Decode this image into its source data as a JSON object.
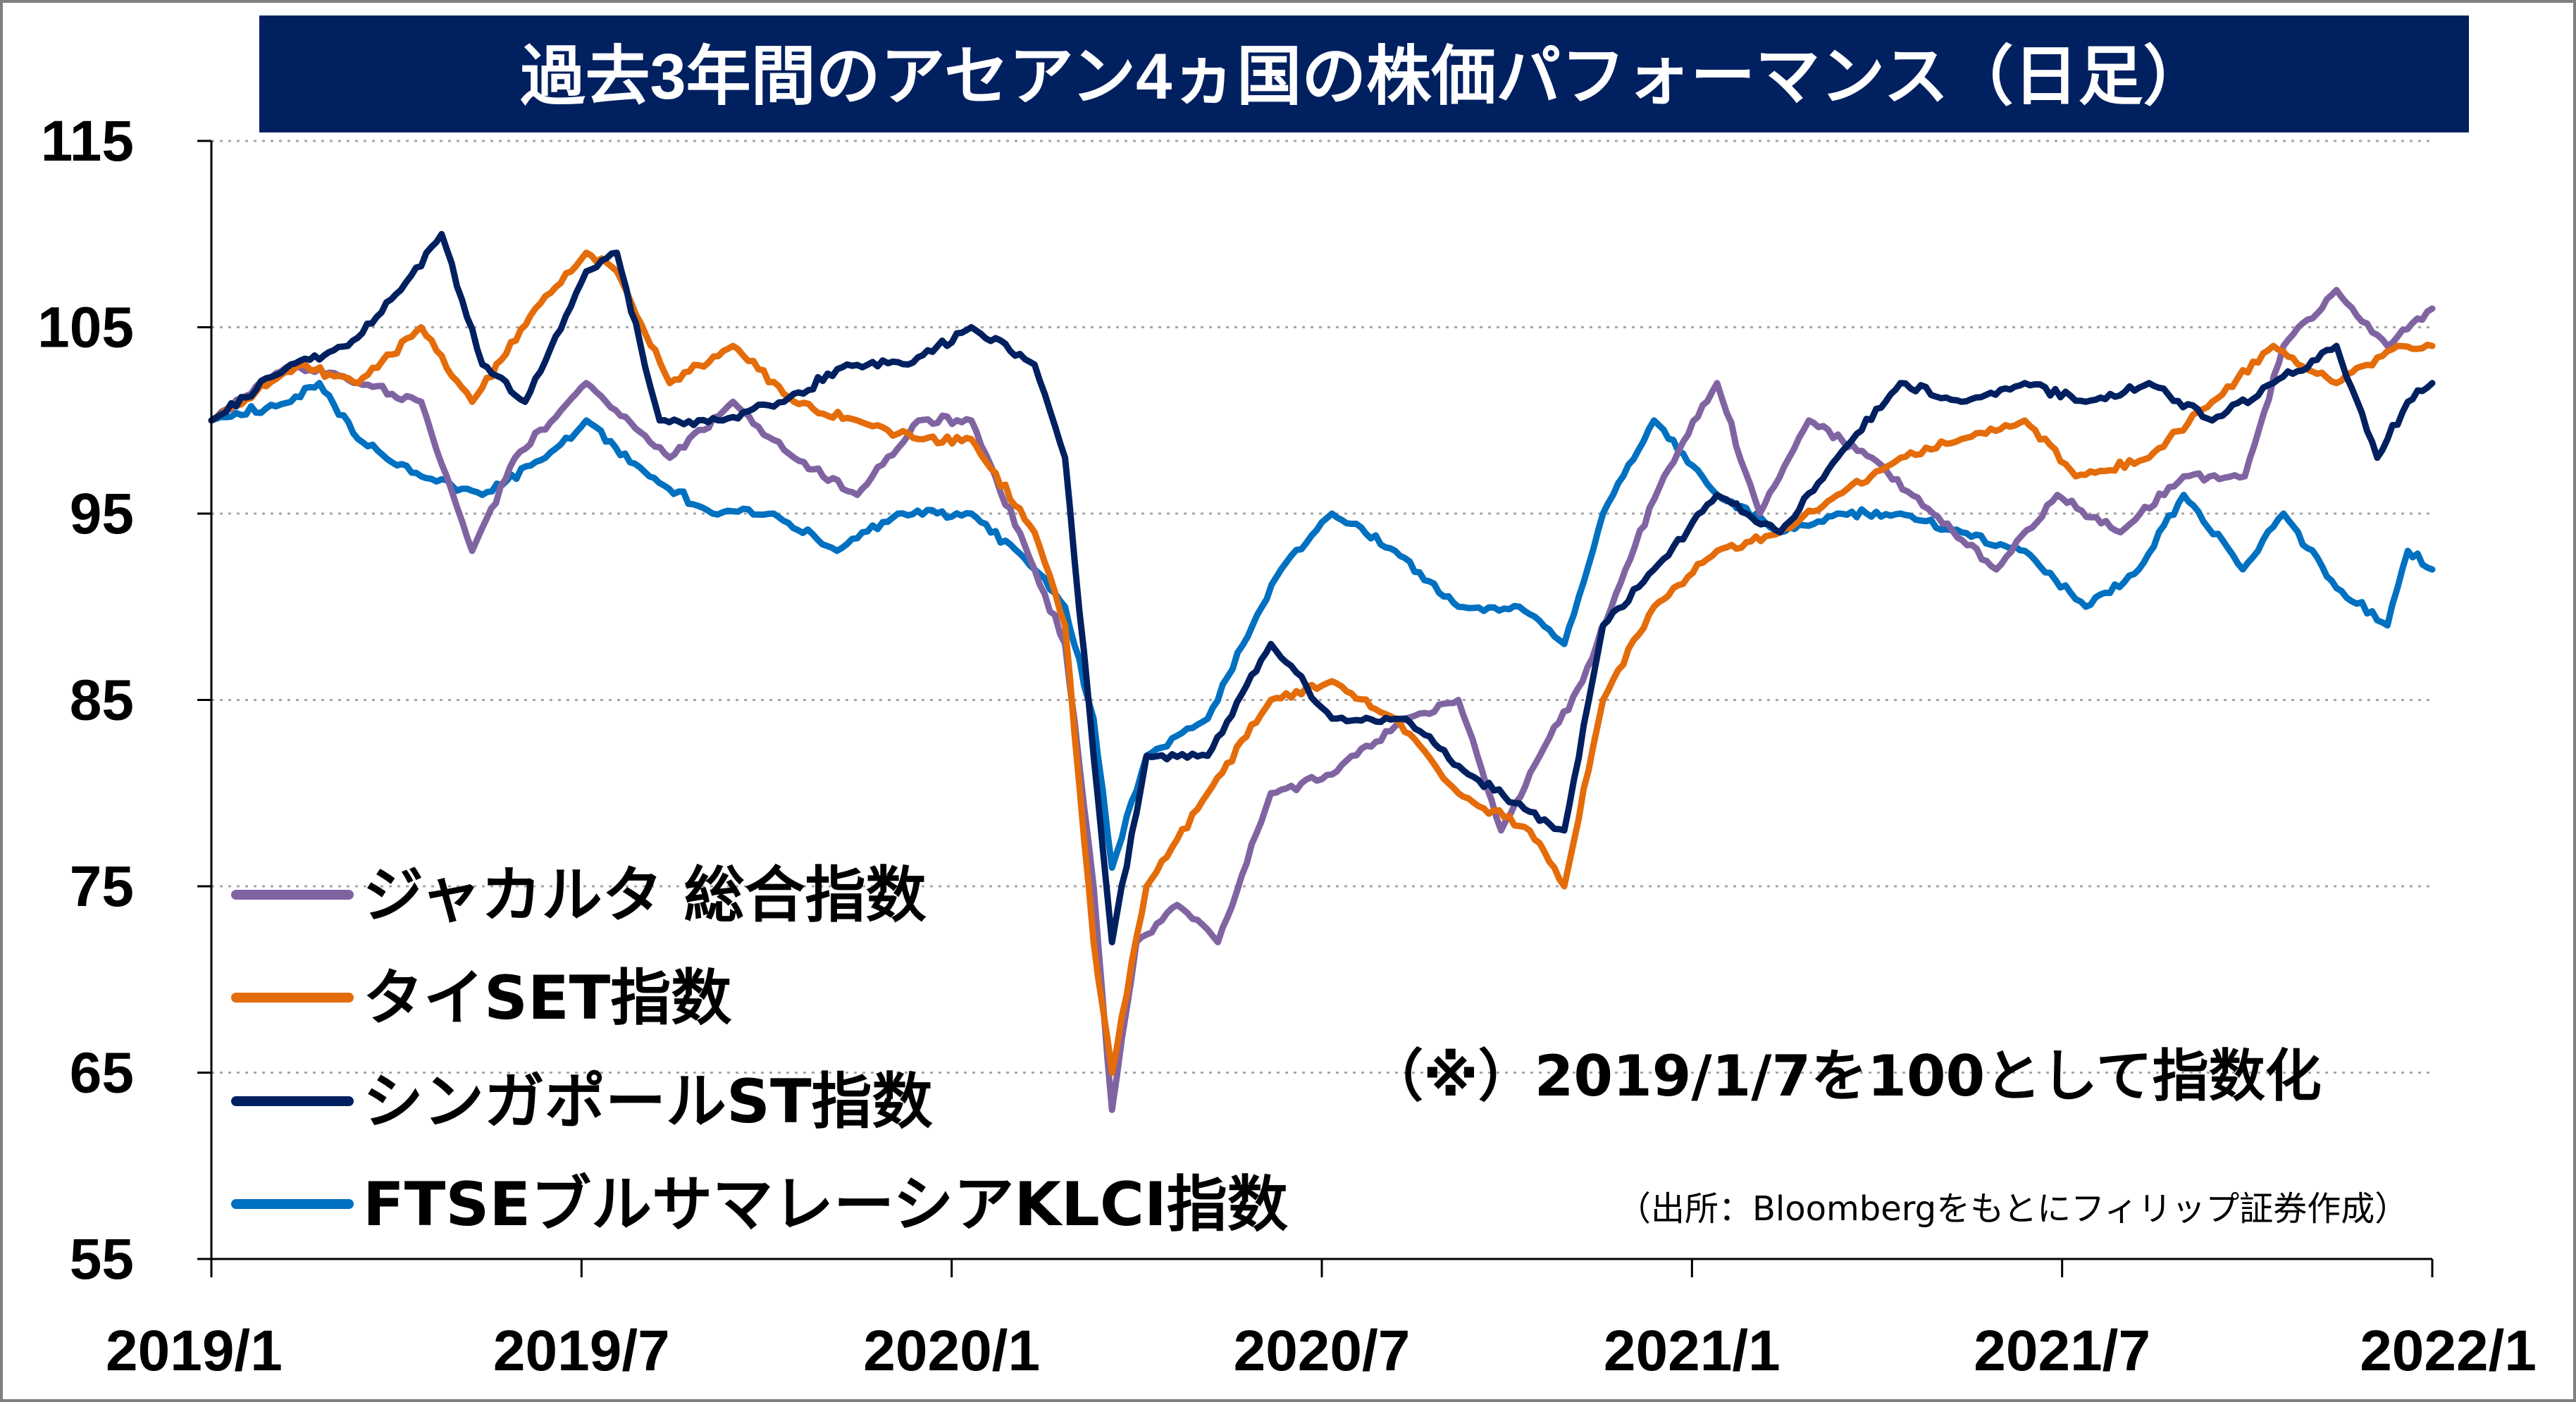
{
  "chart_data": {
    "type": "line",
    "title": "過去3年間のアセアン4ヵ国の株価パフォーマンス（日足）",
    "xlabel": "",
    "ylabel": "",
    "x_ticks": [
      "2019/1",
      "2019/7",
      "2020/1",
      "2020/7",
      "2021/1",
      "2021/7",
      "2022/1"
    ],
    "y_ticks": [
      115,
      105,
      95,
      85,
      75,
      65,
      55
    ],
    "ylim": [
      55,
      115
    ],
    "xlim": [
      "2019-01-07",
      "2022-01-01"
    ],
    "grid": "horizontal-dotted",
    "legend_position": "bottom-left",
    "annotation": "（※）2019/1/7を100として指数化",
    "source": "（出所：Bloombergをもとにフィリップ証券作成）",
    "series": [
      {
        "name": "ジャカルタ 総合指数",
        "color": "#8064A2",
        "points": [
          [
            "2019-01-07",
            100
          ],
          [
            "2019-02-15",
            103
          ],
          [
            "2019-03-20",
            102
          ],
          [
            "2019-04-20",
            101
          ],
          [
            "2019-05-15",
            93
          ],
          [
            "2019-06-05",
            98
          ],
          [
            "2019-07-10",
            102
          ],
          [
            "2019-08-20",
            98
          ],
          [
            "2019-09-20",
            101
          ],
          [
            "2019-10-20",
            98
          ],
          [
            "2019-11-20",
            96
          ],
          [
            "2019-12-20",
            100
          ],
          [
            "2020-01-15",
            100
          ],
          [
            "2020-02-15",
            92
          ],
          [
            "2020-03-01",
            88
          ],
          [
            "2020-03-15",
            75
          ],
          [
            "2020-03-24",
            63
          ],
          [
            "2020-04-05",
            72
          ],
          [
            "2020-04-25",
            74
          ],
          [
            "2020-05-15",
            72
          ],
          [
            "2020-06-10",
            80
          ],
          [
            "2020-07-10",
            81
          ],
          [
            "2020-08-15",
            84
          ],
          [
            "2020-09-10",
            85
          ],
          [
            "2020-10-01",
            78
          ],
          [
            "2020-10-20",
            82
          ],
          [
            "2020-11-10",
            86
          ],
          [
            "2020-12-01",
            92
          ],
          [
            "2020-12-20",
            97
          ],
          [
            "2021-01-15",
            102
          ],
          [
            "2021-02-05",
            95
          ],
          [
            "2021-03-01",
            100
          ],
          [
            "2021-04-01",
            98
          ],
          [
            "2021-05-01",
            95
          ],
          [
            "2021-06-01",
            92
          ],
          [
            "2021-07-01",
            96
          ],
          [
            "2021-08-01",
            94
          ],
          [
            "2021-09-01",
            97
          ],
          [
            "2021-10-01",
            97
          ],
          [
            "2021-10-20",
            104
          ],
          [
            "2021-11-15",
            107
          ],
          [
            "2021-12-10",
            104
          ],
          [
            "2022-01-01",
            106
          ]
        ]
      },
      {
        "name": "タイSET指数",
        "color": "#E46C0A",
        "points": [
          [
            "2019-01-07",
            100
          ],
          [
            "2019-02-20",
            103
          ],
          [
            "2019-03-20",
            102
          ],
          [
            "2019-04-20",
            105
          ],
          [
            "2019-05-15",
            101
          ],
          [
            "2019-06-15",
            106
          ],
          [
            "2019-07-10",
            109
          ],
          [
            "2019-07-25",
            108
          ],
          [
            "2019-08-20",
            102
          ],
          [
            "2019-09-20",
            104
          ],
          [
            "2019-10-20",
            101
          ],
          [
            "2019-11-20",
            100
          ],
          [
            "2019-12-20",
            99
          ],
          [
            "2020-01-15",
            99
          ],
          [
            "2020-02-15",
            94
          ],
          [
            "2020-03-01",
            89
          ],
          [
            "2020-03-15",
            72
          ],
          [
            "2020-03-24",
            65
          ],
          [
            "2020-04-10",
            75
          ],
          [
            "2020-05-10",
            80
          ],
          [
            "2020-06-10",
            85
          ],
          [
            "2020-07-10",
            86
          ],
          [
            "2020-08-10",
            84
          ],
          [
            "2020-09-10",
            80
          ],
          [
            "2020-10-15",
            78
          ],
          [
            "2020-11-01",
            75
          ],
          [
            "2020-11-20",
            85
          ],
          [
            "2020-12-15",
            90
          ],
          [
            "2021-01-15",
            93
          ],
          [
            "2021-02-15",
            94
          ],
          [
            "2021-03-15",
            96
          ],
          [
            "2021-04-15",
            98
          ],
          [
            "2021-05-15",
            99
          ],
          [
            "2021-06-15",
            100
          ],
          [
            "2021-07-10",
            97
          ],
          [
            "2021-08-15",
            98
          ],
          [
            "2021-09-15",
            101
          ],
          [
            "2021-10-15",
            104
          ],
          [
            "2021-11-15",
            102
          ],
          [
            "2021-12-15",
            104
          ],
          [
            "2022-01-01",
            104
          ]
        ]
      },
      {
        "name": "シンガポールST指数",
        "color": "#002060",
        "points": [
          [
            "2019-01-07",
            100
          ],
          [
            "2019-02-15",
            103
          ],
          [
            "2019-03-15",
            104
          ],
          [
            "2019-04-10",
            107
          ],
          [
            "2019-04-30",
            110
          ],
          [
            "2019-05-20",
            103
          ],
          [
            "2019-06-10",
            101
          ],
          [
            "2019-07-10",
            108
          ],
          [
            "2019-07-25",
            109
          ],
          [
            "2019-08-15",
            100
          ],
          [
            "2019-09-15",
            100
          ],
          [
            "2019-10-15",
            101
          ],
          [
            "2019-11-15",
            103
          ],
          [
            "2019-12-15",
            103
          ],
          [
            "2020-01-15",
            105
          ],
          [
            "2020-02-15",
            103
          ],
          [
            "2020-03-01",
            98
          ],
          [
            "2020-03-15",
            82
          ],
          [
            "2020-03-24",
            72
          ],
          [
            "2020-04-10",
            82
          ],
          [
            "2020-05-10",
            82
          ],
          [
            "2020-06-10",
            88
          ],
          [
            "2020-07-10",
            84
          ],
          [
            "2020-08-15",
            84
          ],
          [
            "2020-09-15",
            81
          ],
          [
            "2020-10-15",
            79
          ],
          [
            "2020-11-01",
            78
          ],
          [
            "2020-11-20",
            89
          ],
          [
            "2020-12-15",
            92
          ],
          [
            "2021-01-15",
            96
          ],
          [
            "2021-02-15",
            94
          ],
          [
            "2021-03-15",
            98
          ],
          [
            "2021-04-15",
            102
          ],
          [
            "2021-05-15",
            101
          ],
          [
            "2021-06-15",
            102
          ],
          [
            "2021-07-15",
            101
          ],
          [
            "2021-08-15",
            102
          ],
          [
            "2021-09-15",
            100
          ],
          [
            "2021-10-15",
            102
          ],
          [
            "2021-11-15",
            104
          ],
          [
            "2021-12-05",
            98
          ],
          [
            "2021-12-20",
            101
          ],
          [
            "2022-01-01",
            102
          ]
        ]
      },
      {
        "name": "FTSEブルサマレーシアKLCI指数",
        "color": "#0070C0",
        "points": [
          [
            "2019-01-07",
            100
          ],
          [
            "2019-02-15",
            101
          ],
          [
            "2019-03-01",
            102
          ],
          [
            "2019-03-20",
            99
          ],
          [
            "2019-04-20",
            97
          ],
          [
            "2019-05-20",
            96
          ],
          [
            "2019-06-20",
            98
          ],
          [
            "2019-07-10",
            100
          ],
          [
            "2019-08-10",
            97
          ],
          [
            "2019-09-10",
            95
          ],
          [
            "2019-10-10",
            95
          ],
          [
            "2019-11-10",
            93
          ],
          [
            "2019-12-10",
            95
          ],
          [
            "2020-01-15",
            95
          ],
          [
            "2020-02-15",
            92
          ],
          [
            "2020-03-01",
            90
          ],
          [
            "2020-03-15",
            84
          ],
          [
            "2020-03-24",
            76
          ],
          [
            "2020-04-10",
            82
          ],
          [
            "2020-05-10",
            84
          ],
          [
            "2020-06-01",
            89
          ],
          [
            "2020-06-15",
            92
          ],
          [
            "2020-07-10",
            95
          ],
          [
            "2020-08-10",
            93
          ],
          [
            "2020-09-10",
            90
          ],
          [
            "2020-10-10",
            90
          ],
          [
            "2020-11-01",
            88
          ],
          [
            "2020-11-20",
            95
          ],
          [
            "2020-12-15",
            100
          ],
          [
            "2021-01-15",
            96
          ],
          [
            "2021-02-15",
            94
          ],
          [
            "2021-03-15",
            95
          ],
          [
            "2021-04-15",
            95
          ],
          [
            "2021-05-15",
            94
          ],
          [
            "2021-06-15",
            93
          ],
          [
            "2021-07-15",
            90
          ],
          [
            "2021-08-10",
            92
          ],
          [
            "2021-09-01",
            96
          ],
          [
            "2021-09-30",
            92
          ],
          [
            "2021-10-20",
            95
          ],
          [
            "2021-11-15",
            91
          ],
          [
            "2021-12-10",
            89
          ],
          [
            "2021-12-20",
            93
          ],
          [
            "2022-01-01",
            92
          ]
        ]
      }
    ]
  }
}
